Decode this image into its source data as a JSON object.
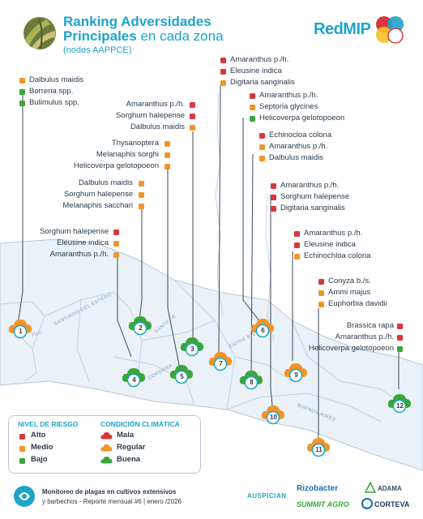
{
  "title": {
    "main_bold": "Ranking Adversidades Principales",
    "main_regular": "en cada zona",
    "subtitle": "(nodos AAPPCE)"
  },
  "brand": "RedMIP",
  "colors": {
    "riesgo_alto": "#d9363e",
    "riesgo_medio": "#f0952a",
    "riesgo_bajo": "#3aa63a",
    "accent": "#1ea3c9"
  },
  "map_labels": [
    "SANTIAGO DEL ESTERO",
    "TUC",
    "SANTA FE",
    "CÓRDOBA",
    "ENTRE RÍOS",
    "BUENOS AIRES"
  ],
  "zones": [
    {
      "id": "1",
      "condicion": "Regular",
      "ranking": [
        {
          "name": "Dalbulus maidis",
          "riesgo": "Medio"
        },
        {
          "name": "Borreria spp.",
          "riesgo": "Bajo"
        },
        {
          "name": "Bulimulus spp.",
          "riesgo": "Bajo"
        }
      ]
    },
    {
      "id": "2",
      "condicion": "Buena",
      "ranking": [
        {
          "name": "Dalbulus maidis",
          "riesgo": "Medio"
        },
        {
          "name": "Sorghum halepense",
          "riesgo": "Medio"
        },
        {
          "name": "Melanaphis sacchari",
          "riesgo": "Medio"
        }
      ]
    },
    {
      "id": "3",
      "condicion": "Buena",
      "ranking": [
        {
          "name": "Amaranthus p./h.",
          "riesgo": "Alto"
        },
        {
          "name": "Sorghum halepense",
          "riesgo": "Alto"
        },
        {
          "name": "Dalbulus maidis",
          "riesgo": "Medio"
        }
      ]
    },
    {
      "id": "4",
      "condicion": "Buena",
      "ranking": [
        {
          "name": "Sorghum halepense",
          "riesgo": "Alto"
        },
        {
          "name": "Eleusine indica",
          "riesgo": "Medio"
        },
        {
          "name": "Amaranthus p./h.",
          "riesgo": "Medio"
        }
      ]
    },
    {
      "id": "5",
      "condicion": "Buena",
      "ranking": [
        {
          "name": "Thysanoptera",
          "riesgo": "Medio"
        },
        {
          "name": "Melanaphis sorghi",
          "riesgo": "Medio"
        },
        {
          "name": "Helicoverpa gelotopoeon",
          "riesgo": "Medio"
        }
      ]
    },
    {
      "id": "6",
      "condicion": "Regular",
      "ranking": [
        {
          "name": "Amaranthus p./h.",
          "riesgo": "Alto"
        },
        {
          "name": "Septoria glycines",
          "riesgo": "Medio"
        },
        {
          "name": "Helicoverpa gelotopoeon",
          "riesgo": "Bajo"
        }
      ]
    },
    {
      "id": "7",
      "condicion": "Regular",
      "ranking": [
        {
          "name": "Amaranthus p./h.",
          "riesgo": "Alto"
        },
        {
          "name": "Eleusine indica",
          "riesgo": "Alto"
        },
        {
          "name": "Digitaria sanginalis",
          "riesgo": "Medio"
        }
      ]
    },
    {
      "id": "8",
      "condicion": "Buena",
      "ranking": [
        {
          "name": "Echinocloa colona",
          "riesgo": "Alto"
        },
        {
          "name": "Amaranthus p./h.",
          "riesgo": "Medio"
        },
        {
          "name": "Dalbulus maidis",
          "riesgo": "Medio"
        }
      ]
    },
    {
      "id": "9",
      "condicion": "Regular",
      "ranking": [
        {
          "name": "Amaranthus p./h.",
          "riesgo": "Alto"
        },
        {
          "name": "Sorghum halepense",
          "riesgo": "Alto"
        },
        {
          "name": "Digitaria sanginalis",
          "riesgo": "Alto"
        }
      ]
    },
    {
      "id": "10",
      "condicion": "Regular",
      "ranking": [
        {
          "name": "Amaranthus p./h.",
          "riesgo": "Alto"
        },
        {
          "name": "Eleusine indica",
          "riesgo": "Alto"
        },
        {
          "name": "Echinochloa colona",
          "riesgo": "Medio"
        }
      ]
    },
    {
      "id": "11",
      "condicion": "Regular",
      "ranking": [
        {
          "name": "Conyza b./s.",
          "riesgo": "Alto"
        },
        {
          "name": "Ammi majus",
          "riesgo": "Medio"
        },
        {
          "name": "Euphorbia davidii",
          "riesgo": "Medio"
        }
      ]
    },
    {
      "id": "12",
      "condicion": "Buena",
      "ranking": [
        {
          "name": "Brassica rapa",
          "riesgo": "Alto"
        },
        {
          "name": "Amaranthus p./h.",
          "riesgo": "Alto"
        },
        {
          "name": "Helicoverpa gelotopoeon",
          "riesgo": "Bajo"
        }
      ]
    }
  ],
  "legend": {
    "riesgo_title": "NIVEL DE RIESGO",
    "riesgo": [
      "Alto",
      "Medio",
      "Bajo"
    ],
    "clima_title": "CONDICIÓN CLIMÁTICA",
    "clima": [
      "Mala",
      "Regular",
      "Buena"
    ]
  },
  "footer": {
    "line1": "Monitoreo de plagas en cultivos extensivos",
    "line2": "y barbechos - Reporte mensual #6 | enero /2026",
    "auspician": "AUSPICIAN",
    "sponsors": [
      "Rizobacter",
      "ADAMA",
      "SUMMIT AGRO",
      "CORTEVA"
    ]
  }
}
